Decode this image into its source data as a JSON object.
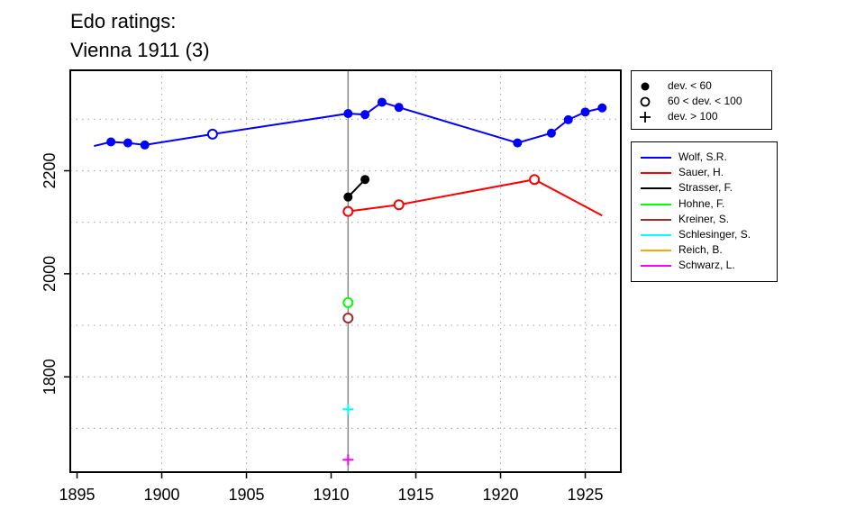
{
  "chart_data": {
    "type": "line",
    "title_lines": [
      "Edo ratings:",
      "Vienna 1911 (3)"
    ],
    "xlabel": "",
    "ylabel": "",
    "xlim": [
      1894.6,
      1927.1
    ],
    "ylim": [
      1615,
      2395
    ],
    "x_ticks": [
      1895,
      1900,
      1905,
      1910,
      1915,
      1920,
      1925
    ],
    "y_ticks": [
      1800,
      2000,
      2200
    ],
    "grid_x": [
      1900,
      1905,
      1915,
      1920,
      1925
    ],
    "grid_y": [
      1700,
      1800,
      1900,
      2000,
      2100,
      2200,
      2300
    ],
    "grid": true,
    "reference_line_x": 1911,
    "symbol_legend": [
      {
        "symbol": "filled-circle",
        "label": "dev. < 60"
      },
      {
        "symbol": "open-circle",
        "label": "60 < dev. < 100"
      },
      {
        "symbol": "plus",
        "label": "dev. > 100"
      }
    ],
    "series": [
      {
        "name": "Wolf, S.R.",
        "color": "#0000ff",
        "points": [
          {
            "x": 1896,
            "y": 2248,
            "m": "none"
          },
          {
            "x": 1897,
            "y": 2256,
            "m": "filled"
          },
          {
            "x": 1898,
            "y": 2254,
            "m": "filled"
          },
          {
            "x": 1899,
            "y": 2250,
            "m": "filled"
          },
          {
            "x": 1903,
            "y": 2271,
            "m": "open"
          },
          {
            "x": 1911,
            "y": 2311,
            "m": "filled"
          },
          {
            "x": 1912,
            "y": 2309,
            "m": "filled"
          },
          {
            "x": 1913,
            "y": 2333,
            "m": "filled"
          },
          {
            "x": 1914,
            "y": 2323,
            "m": "filled"
          },
          {
            "x": 1921,
            "y": 2254,
            "m": "filled"
          },
          {
            "x": 1923,
            "y": 2273,
            "m": "filled"
          },
          {
            "x": 1924,
            "y": 2299,
            "m": "filled"
          },
          {
            "x": 1925,
            "y": 2314,
            "m": "filled"
          },
          {
            "x": 1926,
            "y": 2322,
            "m": "filled"
          }
        ]
      },
      {
        "name": "Sauer, H.",
        "color": "#ff0000",
        "points": [
          {
            "x": 1911,
            "y": 2121,
            "m": "open"
          },
          {
            "x": 1914,
            "y": 2134,
            "m": "open"
          },
          {
            "x": 1922,
            "y": 2183,
            "m": "open"
          },
          {
            "x": 1926,
            "y": 2113,
            "m": "none"
          }
        ]
      },
      {
        "name": "Strasser, F.",
        "color": "#000000",
        "points": [
          {
            "x": 1911,
            "y": 2149,
            "m": "filled"
          },
          {
            "x": 1912,
            "y": 2183,
            "m": "filled"
          }
        ]
      },
      {
        "name": "Hohne, F.",
        "color": "#00ff00",
        "points": [
          {
            "x": 1911,
            "y": 1944,
            "m": "open"
          }
        ]
      },
      {
        "name": "Kreiner, S.",
        "color": "#a52a2a",
        "points": [
          {
            "x": 1911,
            "y": 1914,
            "m": "open"
          }
        ]
      },
      {
        "name": "Schlesinger, S.",
        "color": "#00ffff",
        "points": [
          {
            "x": 1911,
            "y": 1737,
            "m": "plus"
          }
        ]
      },
      {
        "name": "Reich, B.",
        "color": "#ffa500",
        "points": []
      },
      {
        "name": "Schwarz, L.",
        "color": "#ff00ff",
        "points": [
          {
            "x": 1911,
            "y": 1639,
            "m": "plus"
          }
        ]
      }
    ]
  }
}
